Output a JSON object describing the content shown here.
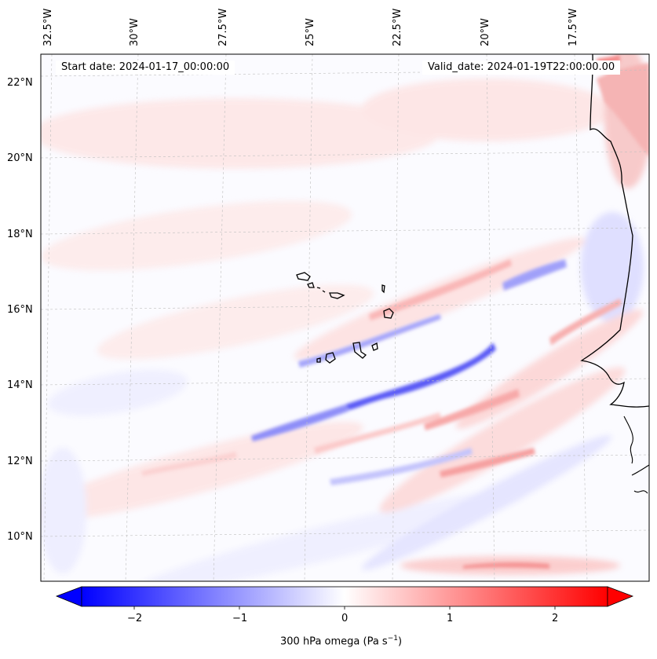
{
  "map": {
    "start_date": "Start date: 2024-01-17_00:00:00",
    "valid_date": "Valid_date: 2024-01-19T22:00:00.00",
    "lon_labels": [
      "32.5°W",
      "30°W",
      "27.5°W",
      "25°W",
      "22.5°W",
      "20°W",
      "17.5°W"
    ],
    "lat_labels": [
      "22°N",
      "20°N",
      "18°N",
      "16°N",
      "14°N",
      "12°N",
      "10°N"
    ],
    "coastline_color": "#000000",
    "gridline_color": "#bfbfbf"
  },
  "colorbar": {
    "label_prefix": "300 hPa omega (Pa s",
    "label_exp": "−1",
    "label_suffix": ")",
    "ticks": [
      "−2",
      "−1",
      "0",
      "1",
      "2"
    ],
    "tick_values": [
      -2,
      -1,
      0,
      1,
      2
    ],
    "range": [
      -2.5,
      2.5
    ],
    "colormap": "bwr",
    "min_color": "#0000ff",
    "max_color": "#ff0000",
    "mid_color": "#ffffff"
  }
}
